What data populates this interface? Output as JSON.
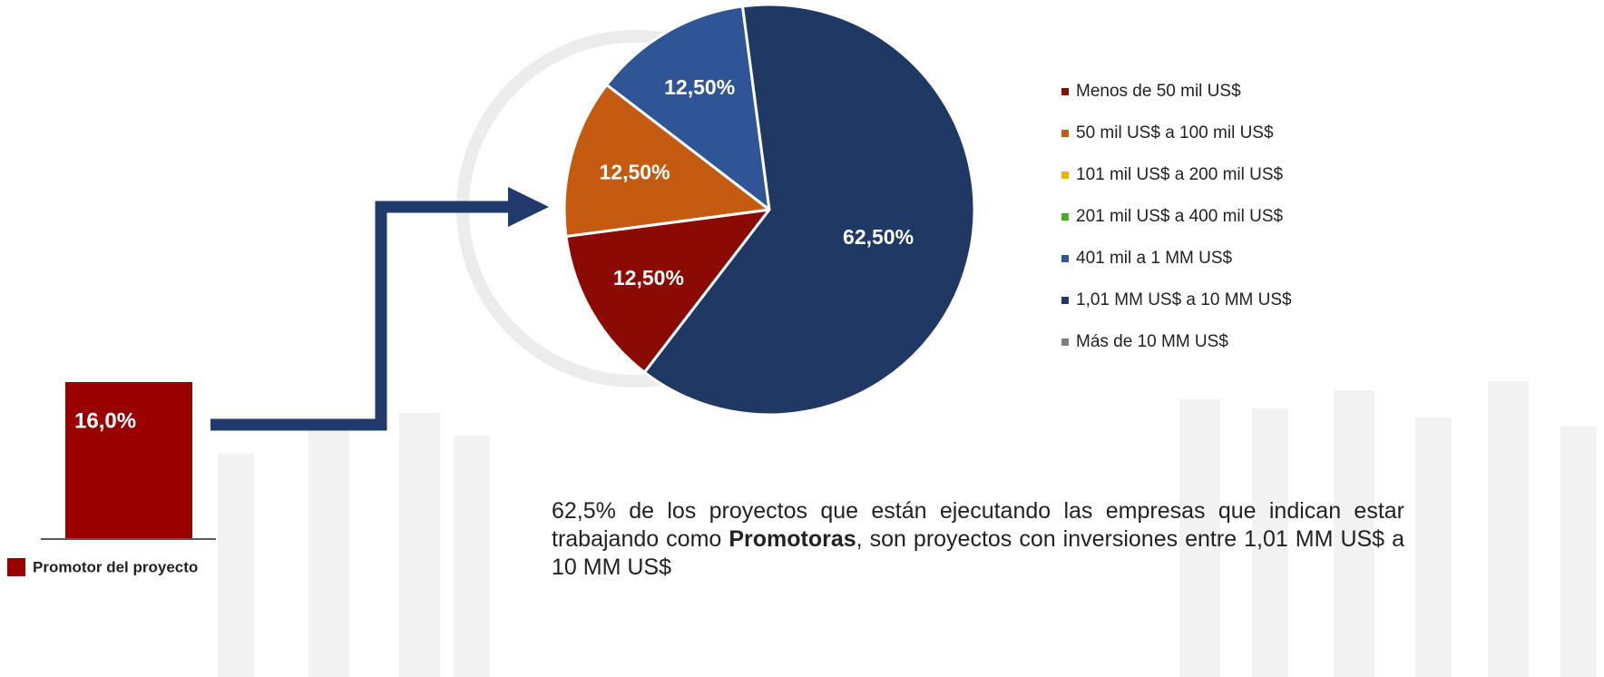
{
  "chart_data": [
    {
      "type": "bar",
      "categories": [
        "Promotor del proyecto"
      ],
      "values": [
        16.0
      ],
      "value_labels": [
        "16,0%"
      ],
      "color": "#990000"
    },
    {
      "type": "pie",
      "categories": [
        "Menos de 50 mil US$",
        "50 mil US$ a 100 mil US$",
        "101 mil US$ a 200 mil US$",
        "201 mil US$ a 400 mil US$",
        "401 mil a 1 MM US$",
        "1,01 MM US$ a 10 MM US$",
        "Más de 10 MM US$"
      ],
      "values": [
        12.5,
        12.5,
        0,
        0,
        12.5,
        62.5,
        0
      ],
      "value_labels": [
        "12,50%",
        "12,50%",
        null,
        null,
        "12,50%",
        "62,50%",
        null
      ],
      "colors": [
        "#8b0a03",
        "#c55a11",
        "#f0b400",
        "#4ea72e",
        "#2f5597",
        "#203864",
        "#7f7f7f"
      ]
    }
  ],
  "caption": {
    "parts": [
      "62,5% de los proyectos que están ejecutando las empresas que indican estar trabajando como ",
      "Promotoras",
      ", son proyectos con inversiones entre 1,01 MM US$ a 10 MM US$"
    ]
  }
}
